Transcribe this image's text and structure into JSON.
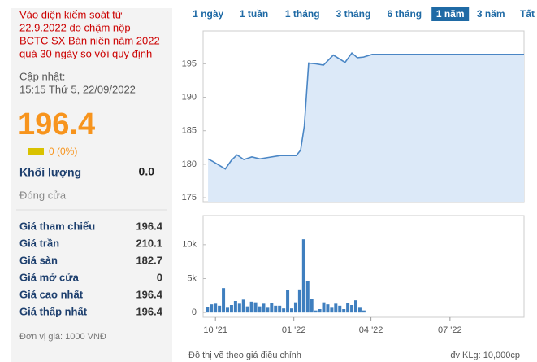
{
  "panel": {
    "notice": [
      "Vào diện kiểm soát từ",
      "22.9.2022 do chậm nộp",
      "BCTC SX Bán niên năm 2022",
      "quá 30 ngày so với quy định"
    ],
    "updated_label": "Cập nhật:",
    "updated_time": "15:15 Thứ 5, 22/09/2022",
    "price": "196.4",
    "change": "0 (0%)",
    "volume_label": "Khối lượng",
    "volume": "0.0",
    "close_label": "Đóng cửa",
    "rows": [
      {
        "label": "Giá tham chiếu",
        "value": "196.4",
        "color": "#f7941d"
      },
      {
        "label": "Giá trần",
        "value": "210.1",
        "color": "#d21bd6"
      },
      {
        "label": "Giá sàn",
        "value": "182.7",
        "color": "#1f6aa5"
      },
      {
        "label": "Giá mở cửa",
        "value": "0",
        "color": "#f7941d"
      },
      {
        "label": "Giá cao nhất",
        "value": "196.4",
        "color": "#f7941d"
      },
      {
        "label": "Giá thấp nhất",
        "value": "196.4",
        "color": "#f7941d"
      }
    ],
    "unit_note": "Đơn vị giá: 1000 VNĐ"
  },
  "tabs": {
    "items": [
      "1 ngày",
      "1 tuần",
      "1 tháng",
      "3 tháng",
      "6 tháng",
      "1 năm",
      "3 năm",
      "Tất cả"
    ],
    "active": 5
  },
  "chart_data": [
    {
      "type": "line",
      "color": "#4a86c5",
      "fill": "#dce9f8",
      "x": [
        0.8,
        1.6,
        3.6,
        4.6,
        5.5,
        6.6,
        7.9,
        9.2,
        10.5,
        12.5,
        15.1,
        15.8,
        16.4,
        17.1,
        18.2,
        19.5,
        21.1,
        23,
        24.1,
        25,
        26,
        27.4,
        52
      ],
      "values": [
        180.8,
        180.4,
        179.3,
        180.6,
        181.4,
        180.7,
        181.1,
        180.8,
        181.0,
        181.3,
        181.3,
        182.1,
        185.7,
        195.1,
        195.0,
        194.8,
        196.3,
        195.2,
        196.6,
        195.9,
        196.0,
        196.4,
        196.4
      ],
      "xlim": [
        0,
        52
      ],
      "ylim": [
        174.4,
        199.9
      ],
      "yticks": [
        175,
        180,
        185,
        190,
        195
      ]
    },
    {
      "type": "bar",
      "color": "#3f7fbf",
      "x": [
        0.7,
        1.35,
        2.0,
        2.65,
        3.3,
        3.95,
        4.6,
        5.25,
        5.9,
        6.55,
        7.2,
        7.85,
        8.5,
        9.15,
        9.8,
        10.45,
        11.1,
        11.75,
        12.4,
        13.05,
        13.7,
        14.35,
        15.0,
        15.65,
        16.3,
        16.95,
        17.6,
        18.25,
        18.9,
        19.55,
        20.2,
        20.85,
        21.5,
        22.15,
        22.8,
        23.45,
        24.1,
        24.75,
        25.4,
        26.05
      ],
      "values": [
        800,
        1200,
        1300,
        1000,
        3600,
        700,
        1100,
        1700,
        1300,
        1900,
        900,
        1600,
        1500,
        900,
        1300,
        700,
        1400,
        1000,
        1000,
        600,
        3300,
        600,
        1500,
        3400,
        10800,
        4600,
        2000,
        300,
        500,
        1500,
        1200,
        700,
        1300,
        1000,
        500,
        1400,
        1100,
        1800,
        700,
        300
      ],
      "xlim": [
        0,
        52
      ],
      "ylim": [
        -700,
        14300
      ],
      "yticks": [
        0,
        {
          "value": 5000,
          "label": "5k"
        },
        {
          "value": 10000,
          "label": "10k"
        }
      ],
      "xticks": [
        {
          "value": 2,
          "label": "10 '21"
        },
        {
          "value": 14.7,
          "label": "01 '22"
        },
        {
          "value": 27.2,
          "label": "04 '22"
        },
        {
          "value": 40,
          "label": "07 '22"
        }
      ],
      "note_left": "Đồ thị vẽ theo giá điều chỉnh",
      "note_right": "đv KLg: 10,000cp"
    }
  ]
}
